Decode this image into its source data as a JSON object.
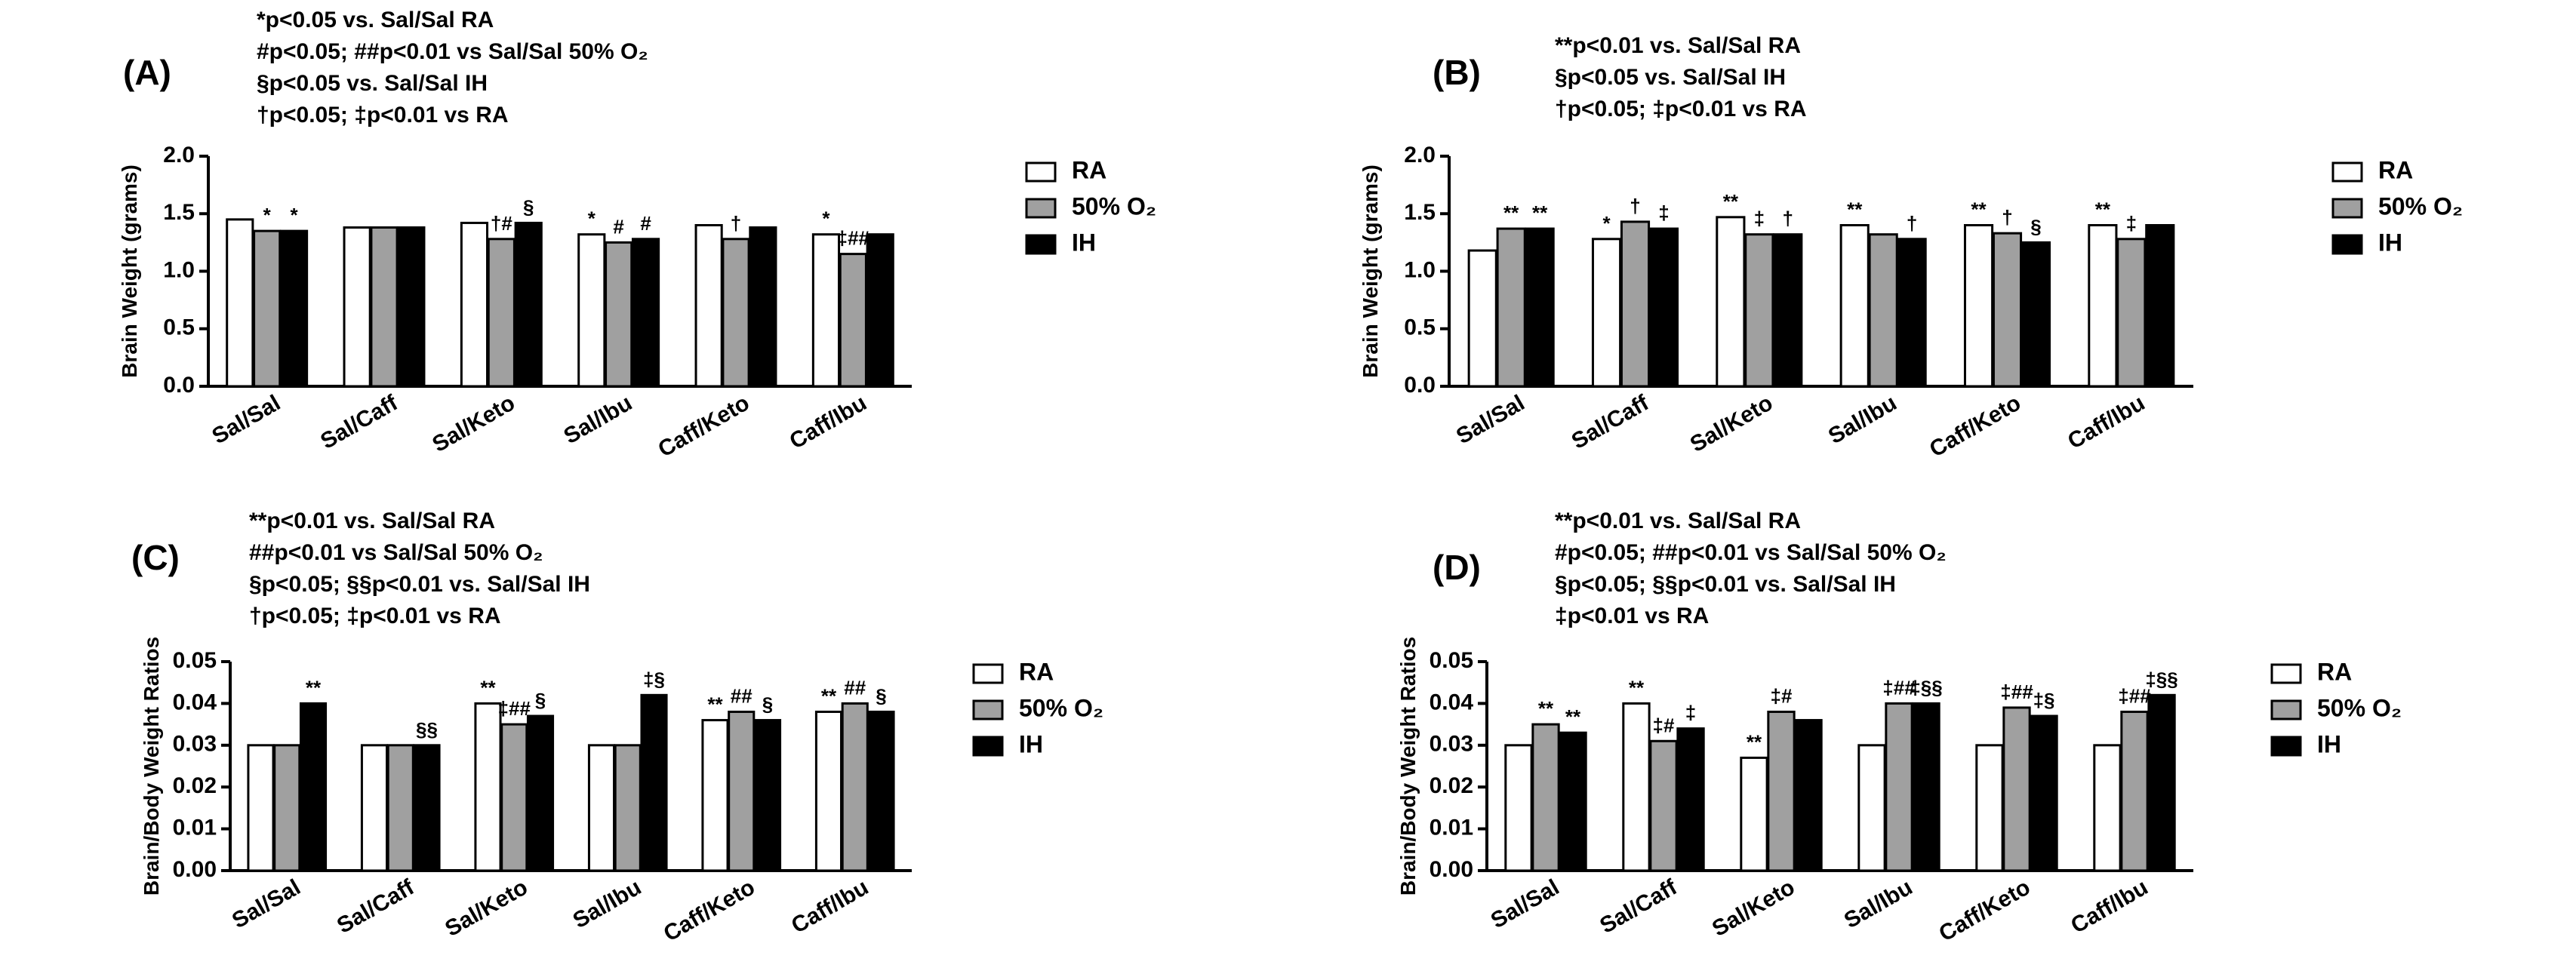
{
  "chart_data": [
    {
      "type": "bar",
      "title": "(A)",
      "annotations": [
        "*p<0.05 vs. Sal/Sal RA",
        "#p<0.05; ##p<0.01 vs Sal/Sal 50% O₂",
        "§p<0.05 vs. Sal/Sal IH",
        "†p<0.05; ‡p<0.01 vs RA"
      ],
      "ylabel": "Brain Weight (grams)",
      "categories": [
        "Sal/Sal",
        "Sal/Caff",
        "Sal/Keto",
        "Sal/Ibu",
        "Caff/Keto",
        "Caff/Ibu"
      ],
      "series": [
        {
          "name": "RA",
          "color": "#ffffff",
          "values": [
            1.45,
            1.38,
            1.42,
            1.32,
            1.4,
            1.32
          ],
          "markers": [
            null,
            null,
            null,
            "*",
            null,
            "*"
          ]
        },
        {
          "name": "50% O₂",
          "color": "#a0a0a0",
          "values": [
            1.35,
            1.38,
            1.28,
            1.25,
            1.28,
            1.15
          ],
          "markers": [
            "*",
            null,
            "†#",
            "#",
            "†",
            "‡##"
          ]
        },
        {
          "name": "IH",
          "color": "#000000",
          "values": [
            1.35,
            1.38,
            1.42,
            1.28,
            1.38,
            1.32
          ],
          "markers": [
            "*",
            null,
            "§",
            "#",
            null,
            null
          ]
        }
      ],
      "ylim": [
        0,
        2
      ],
      "yticks": [
        {
          "value": 0,
          "label": "0.0"
        },
        0.5,
        {
          "value": 1,
          "label": "1.0"
        },
        1.5,
        {
          "value": 2,
          "label": "2.0"
        }
      ]
    },
    {
      "type": "bar",
      "title": "(B)",
      "annotations": [
        "**p<0.01 vs. Sal/Sal RA",
        "§p<0.05 vs. Sal/Sal IH",
        "†p<0.05; ‡p<0.01 vs RA"
      ],
      "ylabel": "Brain Weight (grams)",
      "categories": [
        "Sal/Sal",
        "Sal/Caff",
        "Sal/Keto",
        "Sal/Ibu",
        "Caff/Keto",
        "Caff/Ibu"
      ],
      "series": [
        {
          "name": "RA",
          "color": "#ffffff",
          "values": [
            1.18,
            1.28,
            1.47,
            1.4,
            1.4,
            1.4
          ],
          "markers": [
            null,
            "*",
            "**",
            "**",
            "**",
            "**"
          ]
        },
        {
          "name": "50% O₂",
          "color": "#a0a0a0",
          "values": [
            1.37,
            1.43,
            1.32,
            1.32,
            1.33,
            1.28
          ],
          "markers": [
            "**",
            "†",
            "‡",
            null,
            "†",
            "‡"
          ]
        },
        {
          "name": "IH",
          "color": "#000000",
          "values": [
            1.37,
            1.37,
            1.32,
            1.28,
            1.25,
            1.4
          ],
          "markers": [
            "**",
            "‡",
            "†",
            "†",
            "§",
            null
          ]
        }
      ],
      "ylim": [
        0,
        2
      ],
      "yticks": [
        {
          "value": 0,
          "label": "0.0"
        },
        0.5,
        {
          "value": 1,
          "label": "1.0"
        },
        1.5,
        {
          "value": 2,
          "label": "2.0"
        }
      ]
    },
    {
      "type": "bar",
      "title": "(C)",
      "annotations": [
        "**p<0.01 vs. Sal/Sal RA",
        "##p<0.01 vs Sal/Sal 50% O₂",
        "§p<0.05; §§p<0.01 vs. Sal/Sal IH",
        "†p<0.05; ‡p<0.01 vs RA"
      ],
      "ylabel": "Brain/Body Weight Ratios",
      "categories": [
        "Sal/Sal",
        "Sal/Caff",
        "Sal/Keto",
        "Sal/Ibu",
        "Caff/Keto",
        "Caff/Ibu"
      ],
      "series": [
        {
          "name": "RA",
          "color": "#ffffff",
          "values": [
            0.03,
            0.03,
            0.04,
            0.03,
            0.036,
            0.038
          ],
          "markers": [
            null,
            null,
            "**",
            null,
            "**",
            "**"
          ]
        },
        {
          "name": "50% O₂",
          "color": "#a0a0a0",
          "values": [
            0.03,
            0.03,
            0.035,
            0.03,
            0.038,
            0.04
          ],
          "markers": [
            null,
            null,
            "‡##",
            null,
            "##",
            "##"
          ]
        },
        {
          "name": "IH",
          "color": "#000000",
          "values": [
            0.04,
            0.03,
            0.037,
            0.042,
            0.036,
            0.038
          ],
          "markers": [
            "**",
            "§§",
            "§",
            "‡§",
            "§",
            "§"
          ]
        }
      ],
      "ylim": [
        0,
        0.05
      ],
      "yticks": [
        {
          "value": 0,
          "label": "0.00"
        },
        0.01,
        0.02,
        0.03,
        0.04,
        0.05
      ]
    },
    {
      "type": "bar",
      "title": "(D)",
      "annotations": [
        "**p<0.01 vs. Sal/Sal RA",
        "#p<0.05; ##p<0.01 vs Sal/Sal 50% O₂",
        "§p<0.05; §§p<0.01 vs. Sal/Sal IH",
        "‡p<0.01 vs RA"
      ],
      "ylabel": "Brain/Body Weight Ratios",
      "categories": [
        "Sal/Sal",
        "Sal/Caff",
        "Sal/Keto",
        "Sal/Ibu",
        "Caff/Keto",
        "Caff/Ibu"
      ],
      "series": [
        {
          "name": "RA",
          "color": "#ffffff",
          "values": [
            0.03,
            0.04,
            0.027,
            0.03,
            0.03,
            0.03
          ],
          "markers": [
            null,
            "**",
            "**",
            null,
            null,
            null
          ]
        },
        {
          "name": "50% O₂",
          "color": "#a0a0a0",
          "values": [
            0.035,
            0.031,
            0.038,
            0.04,
            0.039,
            0.038
          ],
          "markers": [
            "**",
            "‡#",
            "‡#",
            "‡##",
            "‡##",
            "‡##"
          ]
        },
        {
          "name": "IH",
          "color": "#000000",
          "values": [
            0.033,
            0.034,
            0.036,
            0.04,
            0.037,
            0.042
          ],
          "markers": [
            "**",
            "‡",
            null,
            "‡§§",
            "‡§",
            "‡§§"
          ]
        }
      ],
      "ylim": [
        0,
        0.05
      ],
      "yticks": [
        {
          "value": 0,
          "label": "0.00"
        },
        0.01,
        0.02,
        0.03,
        0.04,
        0.05
      ]
    }
  ]
}
